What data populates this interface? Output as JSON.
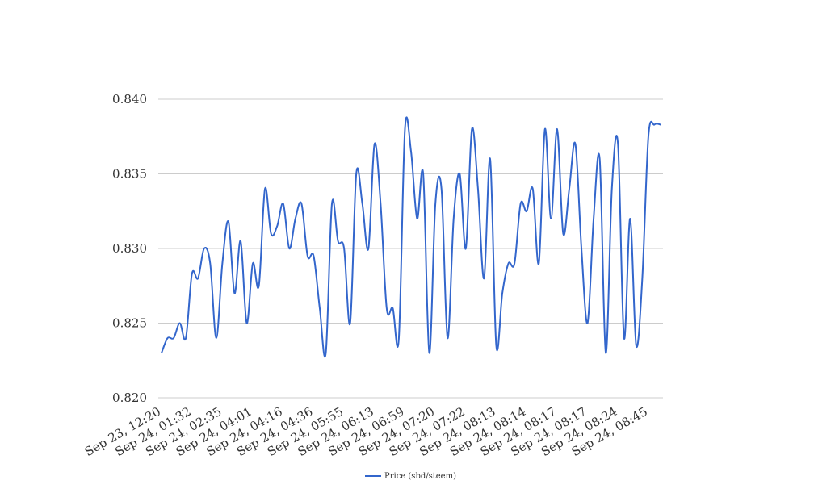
{
  "chart_data": {
    "type": "line",
    "categories": [
      "Sep 23, 12:20",
      null,
      null,
      null,
      null,
      "Sep 24, 01:32",
      null,
      null,
      null,
      null,
      "Sep 24, 02:35",
      null,
      null,
      null,
      null,
      "Sep 24, 04:01",
      null,
      null,
      null,
      null,
      "Sep 24, 04:16",
      null,
      null,
      null,
      null,
      "Sep 24, 04:36",
      null,
      null,
      null,
      null,
      "Sep 24, 05:55",
      null,
      null,
      null,
      null,
      "Sep 24, 06:13",
      null,
      null,
      null,
      null,
      "Sep 24, 06:59",
      null,
      null,
      null,
      null,
      "Sep 24, 07:20",
      null,
      null,
      null,
      null,
      "Sep 24, 07:22",
      null,
      null,
      null,
      null,
      "Sep 24, 08:13",
      null,
      null,
      null,
      null,
      "Sep 24, 08:14",
      null,
      null,
      null,
      null,
      "Sep 24, 08:17",
      null,
      null,
      null,
      null,
      "Sep 24, 08:17",
      null,
      null,
      null,
      null,
      "Sep 24, 08:24",
      null,
      null,
      null,
      null,
      "Sep 24, 08:45",
      null,
      null
    ],
    "series": [
      {
        "name": "Price (sbd/steem)",
        "color": "#3366cc",
        "values": [
          0.823,
          0.824,
          0.824,
          0.825,
          0.824,
          0.8283,
          0.828,
          0.83,
          0.829,
          0.824,
          0.829,
          0.8318,
          0.827,
          0.8305,
          0.825,
          0.829,
          0.8275,
          0.834,
          0.831,
          0.8315,
          0.833,
          0.83,
          0.832,
          0.833,
          0.8295,
          0.8295,
          0.826,
          0.823,
          0.833,
          0.8305,
          0.83,
          0.825,
          0.835,
          0.833,
          0.83,
          0.837,
          0.833,
          0.826,
          0.826,
          0.824,
          0.838,
          0.8365,
          0.832,
          0.835,
          0.823,
          0.833,
          0.834,
          0.824,
          0.832,
          0.835,
          0.83,
          0.838,
          0.834,
          0.828,
          0.836,
          0.8235,
          0.827,
          0.829,
          0.829,
          0.833,
          0.8325,
          0.834,
          0.829,
          0.838,
          0.832,
          0.838,
          0.831,
          0.834,
          0.837,
          0.83,
          0.825,
          0.832,
          0.836,
          0.823,
          0.834,
          0.837,
          0.824,
          0.832,
          0.8235,
          0.828,
          0.8375,
          0.8383,
          0.8383
        ]
      }
    ],
    "ylim": [
      0.82,
      0.84
    ],
    "yticks": [
      {
        "value": 0.82,
        "label": "0.820"
      },
      {
        "value": 0.825,
        "label": "0.825"
      },
      {
        "value": 0.83,
        "label": "0.830"
      },
      {
        "value": 0.835,
        "label": "0.835"
      },
      {
        "value": 0.84,
        "label": "0.840"
      }
    ],
    "grid": true,
    "legend": "bottom"
  }
}
